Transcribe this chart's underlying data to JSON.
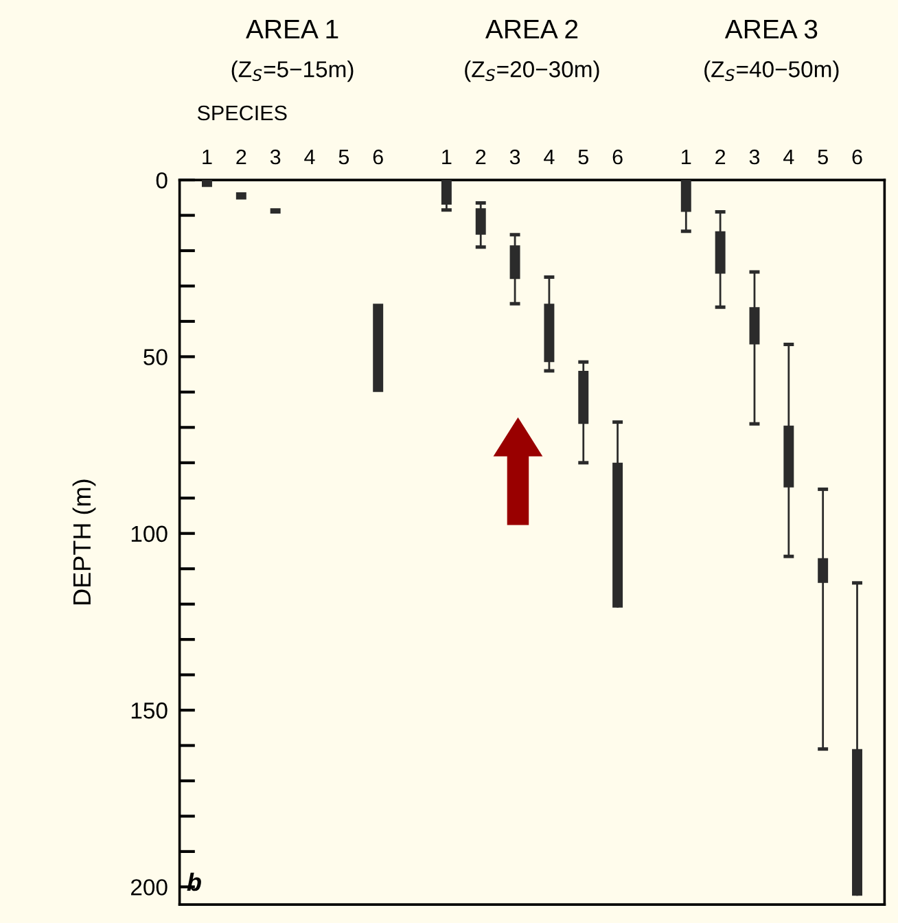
{
  "chart_data": {
    "type": "bar",
    "ylabel": "DEPTH (m)",
    "annotations": [
      "AREA 1",
      "(Z$_{S}$=5−15m)",
      "AREA 2",
      "(Z$_{S}$=20−30m)",
      "AREA 3",
      "(Z$_{S}$=40−50m)",
      "SPECIES",
      "b"
    ],
    "categories": [
      "1",
      "2",
      "3",
      "4",
      "5",
      "6",
      null,
      "1",
      "2",
      "3",
      "4",
      "5",
      "6",
      null,
      "1",
      "2",
      "3",
      "4",
      "5",
      "6"
    ],
    "series": [
      {
        "color": "#2b2b2b",
        "base": [
          0,
          3.5,
          8,
          null,
          null,
          35,
          null,
          0,
          8,
          18.5,
          35,
          54,
          80,
          null,
          0,
          14.5,
          36,
          69.5,
          107,
          161
        ],
        "values": [
          2,
          2,
          1.5,
          null,
          null,
          25,
          null,
          7,
          7.5,
          9.5,
          16.5,
          15,
          41,
          null,
          9,
          12,
          10.5,
          17.5,
          7,
          41.5
        ],
        "errors": [
          null,
          null,
          null,
          null,
          null,
          null,
          null,
          [
            0,
            8.5
          ],
          [
            6.5,
            19
          ],
          [
            15.5,
            35
          ],
          [
            27.5,
            54
          ],
          [
            51.5,
            80
          ],
          [
            68.5,
            121
          ],
          null,
          [
            0,
            14.5
          ],
          [
            9,
            36
          ],
          [
            26,
            69
          ],
          [
            46.5,
            106.5
          ],
          [
            87.5,
            161
          ],
          [
            114,
            202.5
          ]
        ]
      }
    ],
    "ylim": [
      205,
      0
    ],
    "yticks": [
      0,
      {
        "value": 10,
        "label": null
      },
      {
        "value": 20,
        "label": null
      },
      {
        "value": 30,
        "label": null
      },
      {
        "value": 40,
        "label": null
      },
      50,
      {
        "value": 60,
        "label": null
      },
      {
        "value": 70,
        "label": null
      },
      {
        "value": 80,
        "label": null
      },
      {
        "value": 90,
        "label": null
      },
      100,
      {
        "value": 110,
        "label": null
      },
      {
        "value": 120,
        "label": null
      },
      {
        "value": 130,
        "label": null
      },
      {
        "value": 140,
        "label": null
      },
      150,
      {
        "value": 160,
        "label": null
      },
      {
        "value": 170,
        "label": null
      },
      {
        "value": 180,
        "label": null
      },
      {
        "value": 190,
        "label": null
      },
      200
    ],
    "grid": false
  }
}
